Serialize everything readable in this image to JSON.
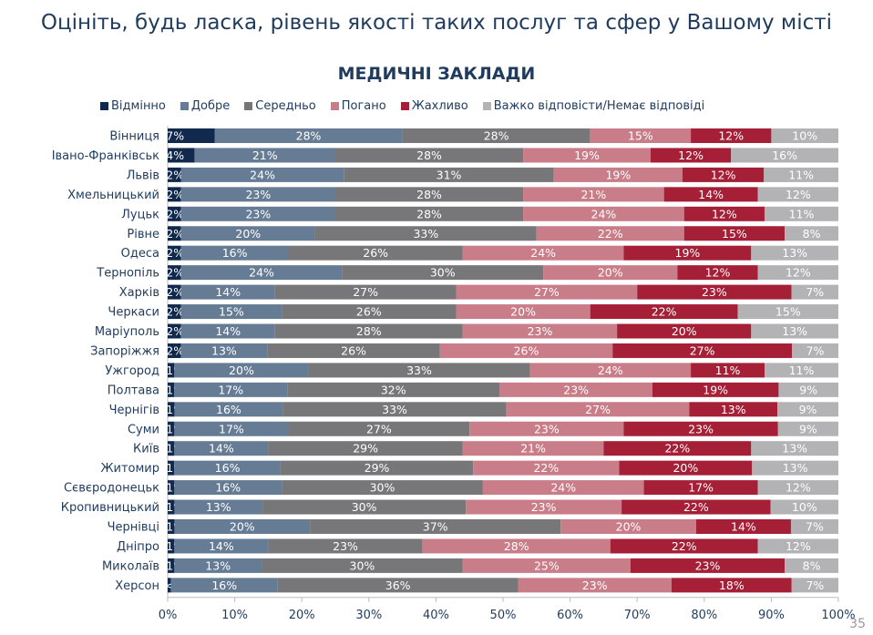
{
  "title": "Оцініть, будь ласка, рівень якості таких послуг та сфер у Вашому місті",
  "page_number": "35",
  "chart_data": {
    "type": "bar",
    "orientation": "horizontal-stacked-100",
    "title": "МЕДИЧНІ ЗАКЛАДИ",
    "xlim": [
      0,
      100
    ],
    "x_ticks": [
      "0%",
      "10%",
      "20%",
      "30%",
      "40%",
      "50%",
      "60%",
      "70%",
      "80%",
      "90%",
      "100%"
    ],
    "legend_position": "top",
    "categories": [
      "Вінниця",
      "Івано-Франківськ",
      "Львів",
      "Хмельницький",
      "Луцьк",
      "Рівне",
      "Одеса",
      "Тернопіль",
      "Харків",
      "Черкаси",
      "Маріуполь",
      "Запоріжжя",
      "Ужгород",
      "Полтава",
      "Чернігів",
      "Суми",
      "Київ",
      "Житомир",
      "Сєвєродонецьк",
      "Кропивницький",
      "Чернівці",
      "Дніпро",
      "Миколаїв",
      "Херсон"
    ],
    "series": [
      {
        "name": "Відмінно",
        "color": "#10294c",
        "values": [
          7,
          4,
          2,
          2,
          2,
          2,
          2,
          2,
          2,
          2,
          2,
          2,
          1,
          1,
          1,
          1,
          1,
          1,
          1,
          1,
          1,
          1,
          1,
          0.5
        ],
        "labels": [
          "7%",
          "4%",
          "2%",
          "2%",
          "2%",
          "2%",
          "2%",
          "2%",
          "2%",
          "2%",
          "2%",
          "2%",
          "1%",
          "1%",
          "1%",
          "1%",
          "1%",
          "1%",
          "1%",
          "1%",
          "1%",
          "1%",
          "1%",
          "<1%"
        ]
      },
      {
        "name": "Добре",
        "color": "#667c95",
        "values": [
          28,
          21,
          24,
          23,
          23,
          20,
          16,
          24,
          14,
          15,
          14,
          13,
          20,
          17,
          16,
          17,
          14,
          16,
          16,
          13,
          20,
          14,
          13,
          16
        ]
      },
      {
        "name": "Середньо",
        "color": "#77777a",
        "values": [
          28,
          28,
          31,
          28,
          28,
          33,
          26,
          30,
          27,
          26,
          28,
          26,
          33,
          32,
          33,
          27,
          29,
          29,
          30,
          30,
          37,
          23,
          30,
          36
        ]
      },
      {
        "name": "Погано",
        "color": "#c97d89",
        "values": [
          15,
          19,
          19,
          21,
          24,
          22,
          24,
          20,
          27,
          20,
          23,
          26,
          24,
          23,
          27,
          23,
          21,
          22,
          24,
          23,
          20,
          28,
          25,
          23
        ]
      },
      {
        "name": "Жахливо",
        "color": "#a51f37",
        "values": [
          12,
          12,
          12,
          14,
          12,
          15,
          19,
          12,
          23,
          22,
          20,
          27,
          11,
          19,
          13,
          23,
          22,
          20,
          17,
          22,
          14,
          22,
          23,
          18
        ]
      },
      {
        "name": "Важко відповісти/Немає відповіді",
        "color": "#b3b3b5",
        "values": [
          10,
          16,
          11,
          12,
          11,
          8,
          13,
          12,
          7,
          15,
          13,
          7,
          11,
          9,
          9,
          9,
          13,
          13,
          12,
          10,
          7,
          12,
          8,
          7
        ]
      }
    ]
  }
}
